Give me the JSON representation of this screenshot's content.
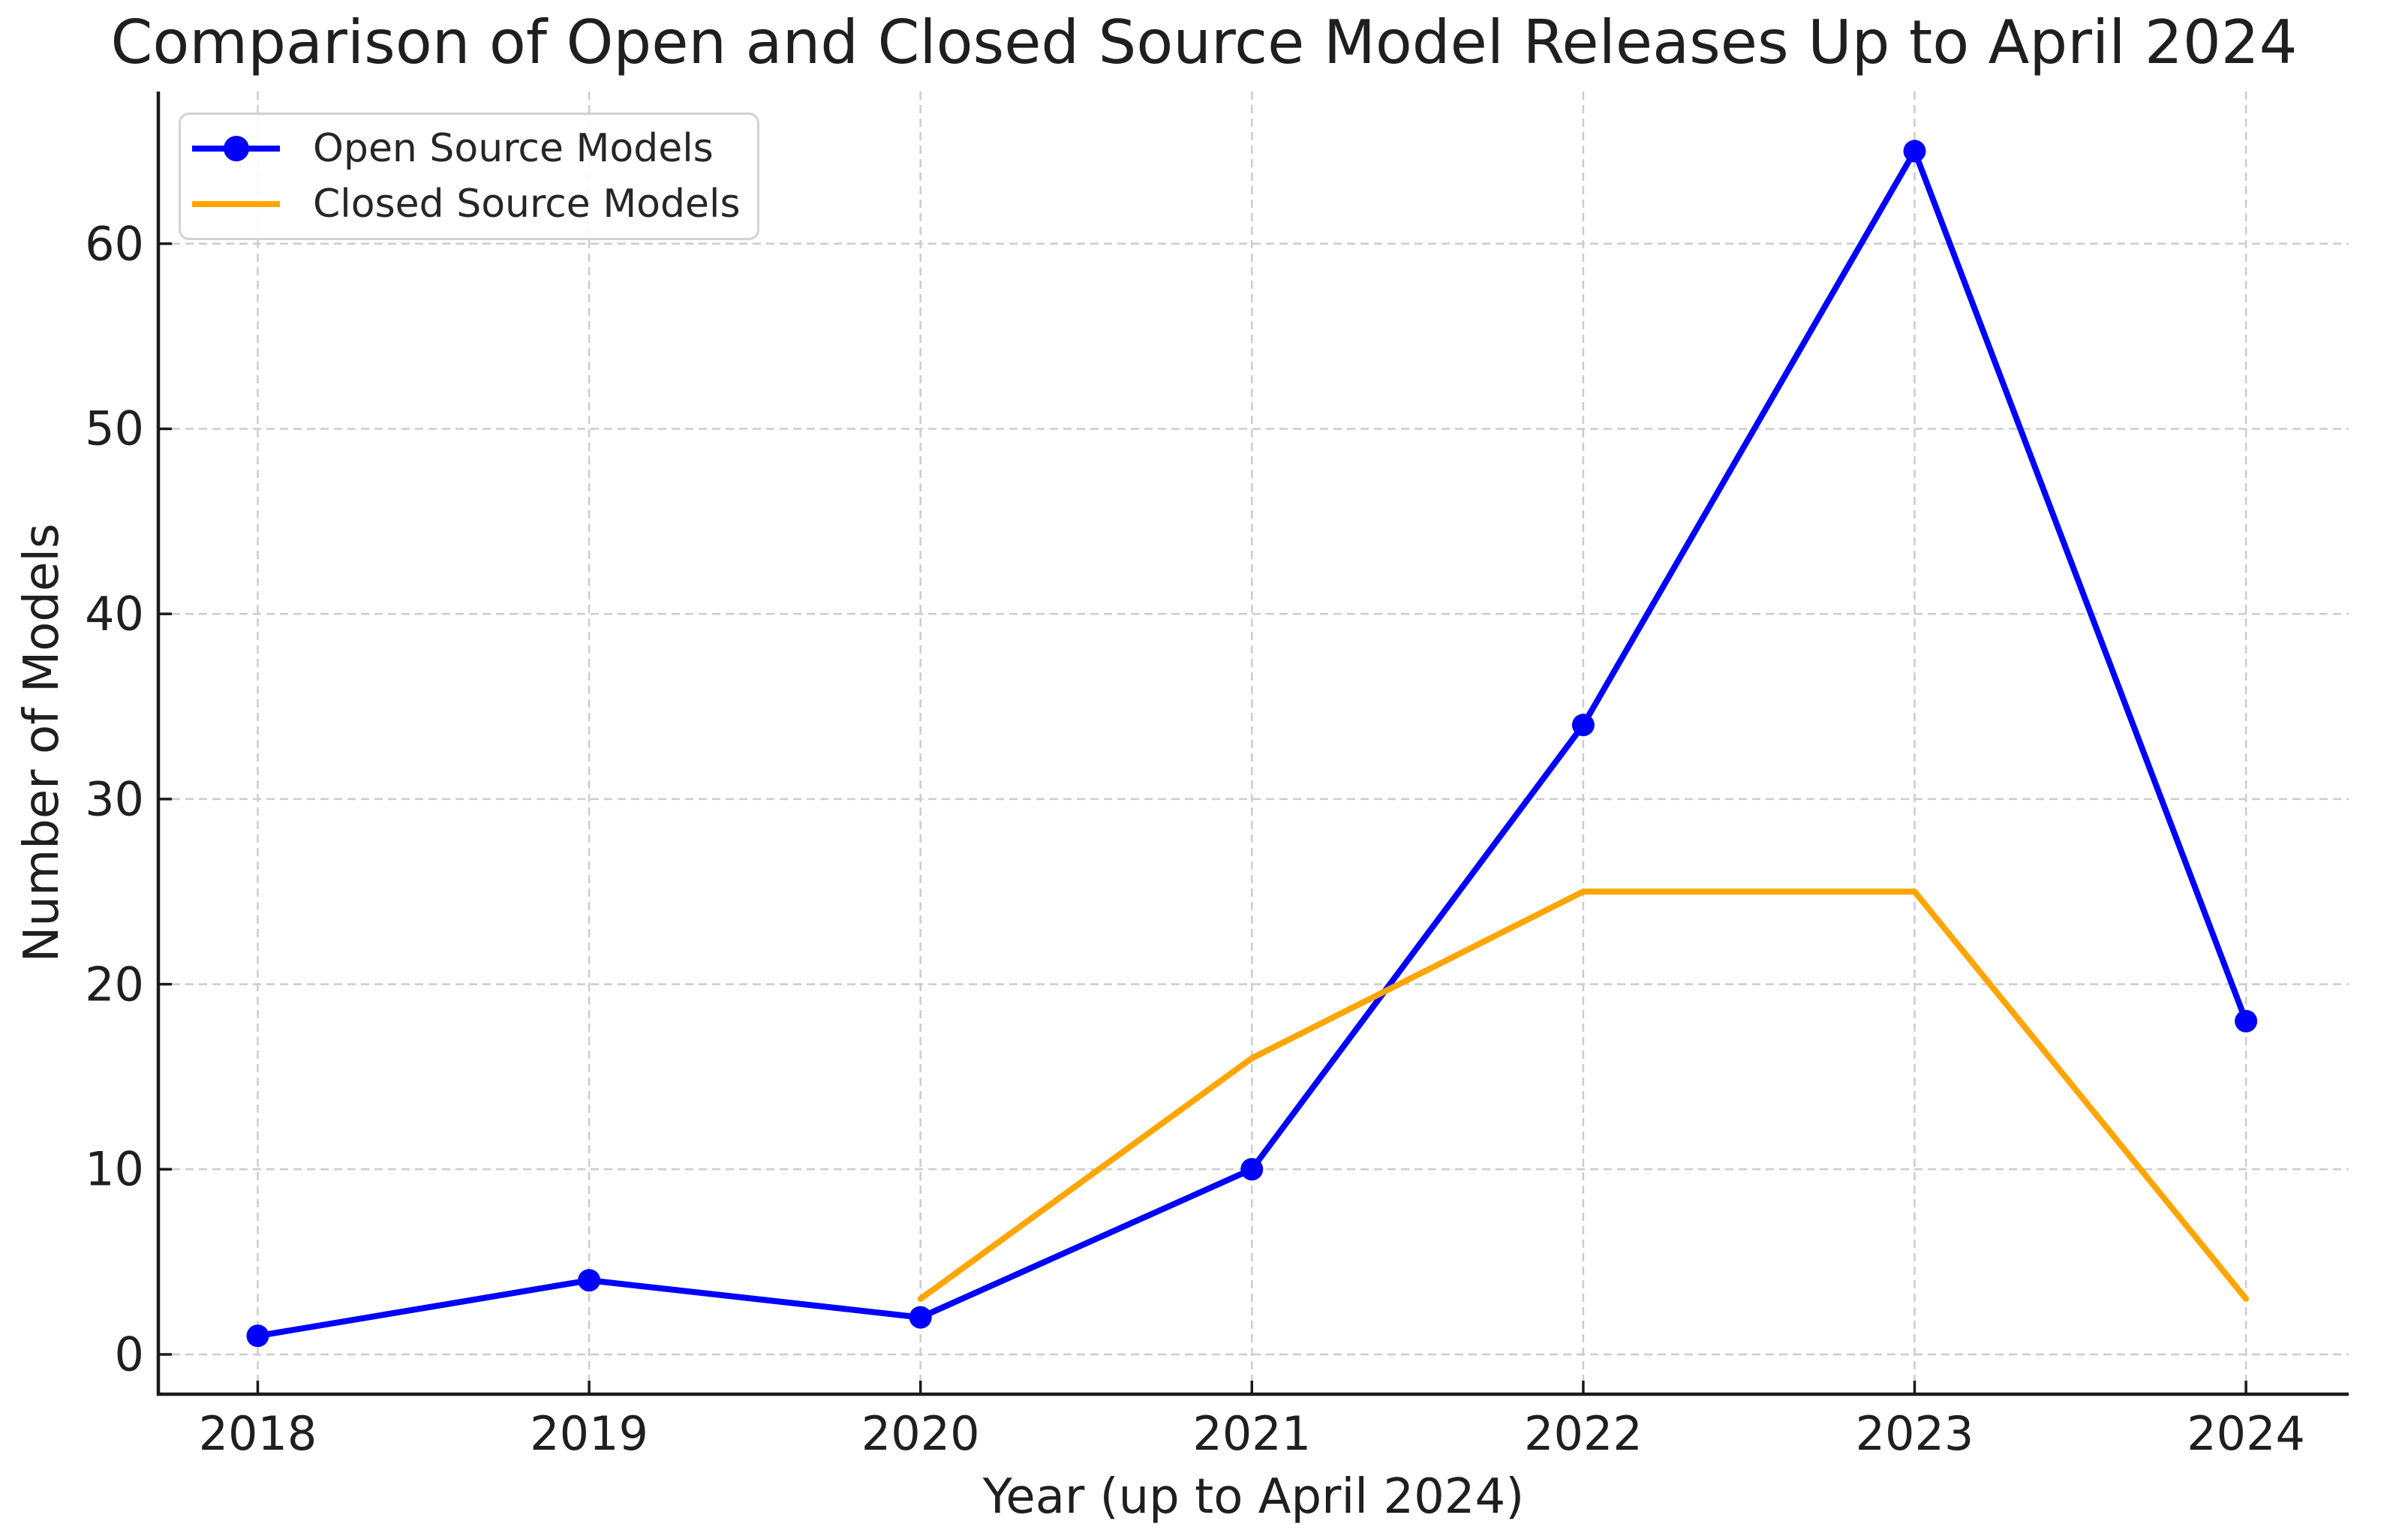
{
  "chart_data": {
    "type": "line",
    "title": "Comparison of Open and Closed Source Model Releases Up to April 2024",
    "xlabel": "Year (up to April 2024)",
    "ylabel": "Number of Models",
    "x_ticks": [
      "2018",
      "2019",
      "2020",
      "2021",
      "2022",
      "2023",
      "2024"
    ],
    "y_ticks": [
      "0",
      "10",
      "20",
      "30",
      "40",
      "50",
      "60"
    ],
    "xlim": [
      2017.7,
      2024.31
    ],
    "ylim": [
      -2.15,
      68.22
    ],
    "grid": true,
    "legend_position": "upper left",
    "series": [
      {
        "name": "Open Source Models",
        "color": "#0000FF",
        "marker": "circle",
        "x": [
          2018,
          2019,
          2020,
          2021,
          2022,
          2023,
          2024
        ],
        "values": [
          1,
          4,
          2,
          10,
          34,
          65,
          18
        ]
      },
      {
        "name": "Closed Source Models",
        "color": "#FFA500",
        "marker": "none",
        "x": [
          2020,
          2021,
          2022,
          2023,
          2024
        ],
        "values": [
          3,
          16,
          25,
          25,
          3
        ]
      }
    ],
    "colors": {
      "grid": "#cccccc",
      "axis": "#1a1a1a",
      "text": "#1f1f1f",
      "background": "#ffffff"
    }
  }
}
